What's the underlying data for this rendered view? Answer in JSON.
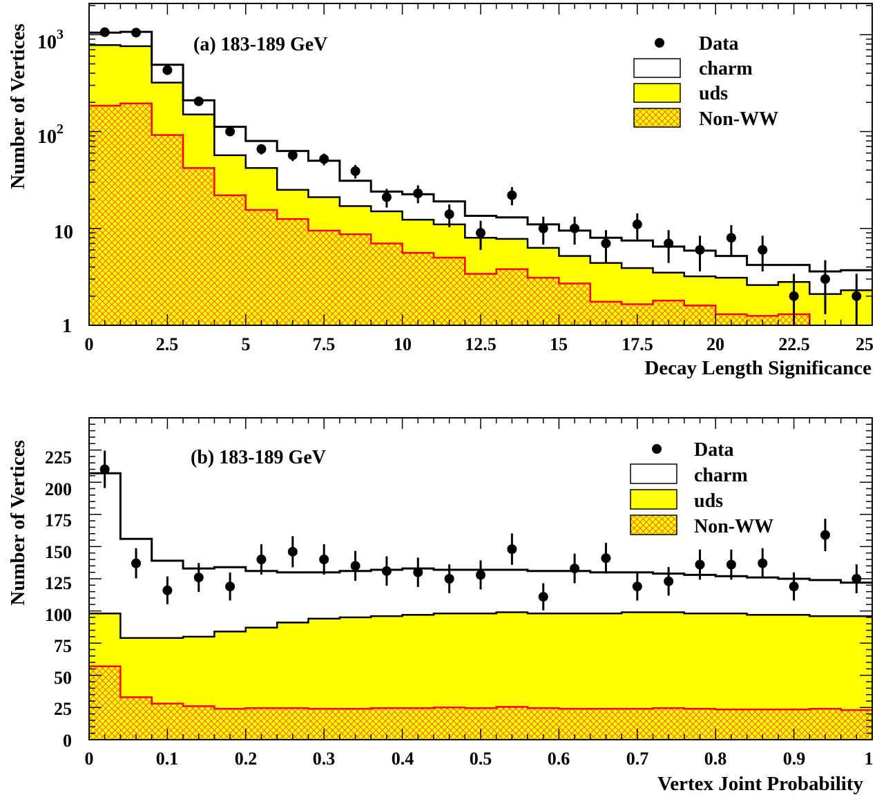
{
  "colors": {
    "uds_fill": "#ffff00",
    "nonww_fill": "#ffff00",
    "nonww_hatch": "#ff4a00",
    "nonww_line": "#ff0000",
    "line": "#000000",
    "background": "#ffffff"
  },
  "chart_data": [
    {
      "type": "histogram",
      "panel_label": "(a) 183-189 GeV",
      "xlabel": "Decay Length Significance",
      "ylabel": "Number of Vertices",
      "log_y": true,
      "xlim": [
        0,
        25
      ],
      "ylim": [
        1,
        2100
      ],
      "x_ticks": [
        0,
        2.5,
        5,
        7.5,
        10,
        12.5,
        15,
        17.5,
        20,
        22.5,
        25
      ],
      "x_tick_labels": [
        "0",
        "2.5",
        "5",
        "7.5",
        "10",
        "12.5",
        "15",
        "17.5",
        "20",
        "22.5",
        "25"
      ],
      "y_tick_labels": [
        {
          "value": 1,
          "base": "1",
          "exp": ""
        },
        {
          "value": 10,
          "base": "10",
          "exp": ""
        },
        {
          "value": 100,
          "base": "10",
          "exp": "2"
        },
        {
          "value": 1000,
          "base": "10",
          "exp": "3"
        }
      ],
      "bin_edges": [
        0,
        1,
        2,
        3,
        4,
        5,
        6,
        7,
        8,
        9,
        10,
        11,
        12,
        13,
        14,
        15,
        16,
        17,
        18,
        19,
        20,
        21,
        22,
        23,
        24,
        25
      ],
      "legend": {
        "position": "top-right",
        "entries": [
          "Data",
          "charm",
          "uds",
          "Non-WW"
        ]
      },
      "series": [
        {
          "name": "charm",
          "kind": "stack-total",
          "values": [
            1050,
            1070,
            490,
            210,
            112,
            80,
            63,
            50,
            31,
            24,
            22.5,
            19,
            13.5,
            13,
            11,
            9.5,
            8,
            7.5,
            6.5,
            5.9,
            5.2,
            4.2,
            4.2,
            3.6,
            3.7
          ]
        },
        {
          "name": "uds",
          "kind": "stack",
          "values": [
            780,
            760,
            320,
            150,
            57,
            42,
            25,
            21,
            17,
            15,
            12.3,
            11,
            8,
            7.8,
            6.3,
            5.2,
            4.4,
            3.9,
            3.5,
            3.2,
            3.1,
            2.6,
            2.8,
            2.1,
            2.3
          ]
        },
        {
          "name": "Non-WW",
          "kind": "stack",
          "values": [
            185,
            195,
            92,
            42,
            22,
            15.5,
            12.5,
            9.5,
            8.7,
            7,
            5.6,
            5,
            3.4,
            3.8,
            3.1,
            2.7,
            1.75,
            1.65,
            1.8,
            1.6,
            1.3,
            1.25,
            1.3,
            0.9,
            0.9
          ]
        },
        {
          "name": "Data",
          "kind": "points",
          "x": [
            0.5,
            1.5,
            2.5,
            3.5,
            4.5,
            5.5,
            6.5,
            7.5,
            8.5,
            9.5,
            10.5,
            11.5,
            12.5,
            13.5,
            14.5,
            15.5,
            16.5,
            17.5,
            18.5,
            19.5,
            20.5,
            21.5,
            22.5,
            23.5,
            24.5
          ],
          "y": [
            1060,
            1050,
            430,
            205,
            100,
            66,
            57,
            52,
            39,
            21,
            23,
            14,
            9,
            22,
            10,
            10,
            7,
            11,
            7,
            6,
            8,
            6,
            2,
            3,
            2
          ],
          "err": [
            33,
            32,
            21,
            14,
            10,
            8,
            7.5,
            7.2,
            6.2,
            4.6,
            4.8,
            3.7,
            3,
            4.7,
            3.2,
            3.2,
            2.6,
            3.3,
            2.6,
            2.4,
            2.8,
            2.4,
            1.4,
            1.7,
            1.4
          ]
        }
      ]
    },
    {
      "type": "histogram",
      "panel_label": "(b) 183-189 GeV",
      "xlabel": "Vertex Joint Probability",
      "ylabel": "Number of Vertices",
      "log_y": false,
      "xlim": [
        0,
        1
      ],
      "ylim": [
        0,
        250
      ],
      "x_ticks": [
        0,
        0.1,
        0.2,
        0.3,
        0.4,
        0.5,
        0.6,
        0.7,
        0.8,
        0.9,
        1
      ],
      "x_tick_labels": [
        "0",
        "0.1",
        "0.2",
        "0.3",
        "0.4",
        "0.5",
        "0.6",
        "0.7",
        "0.8",
        "0.9",
        "1"
      ],
      "y_ticks": [
        0,
        25,
        50,
        75,
        100,
        125,
        150,
        175,
        200,
        225
      ],
      "y_tick_labels": [
        "0",
        "25",
        "50",
        "75",
        "100",
        "125",
        "150",
        "175",
        "200",
        "225"
      ],
      "bin_edges": [
        0,
        0.04,
        0.08,
        0.12,
        0.16,
        0.2,
        0.24,
        0.28,
        0.32,
        0.36,
        0.4,
        0.44,
        0.48,
        0.52,
        0.56,
        0.6,
        0.64,
        0.68,
        0.72,
        0.76,
        0.8,
        0.84,
        0.88,
        0.92,
        0.96,
        1.0
      ],
      "legend": {
        "position": "top-right",
        "entries": [
          "Data",
          "charm",
          "uds",
          "Non-WW"
        ]
      },
      "series": [
        {
          "name": "charm",
          "kind": "stack-total",
          "values": [
            207,
            156,
            139,
            133,
            134,
            131,
            130,
            130,
            131,
            132,
            133,
            132,
            132,
            132,
            131,
            131,
            130,
            130,
            129,
            128,
            127,
            126,
            125,
            124,
            122
          ]
        },
        {
          "name": "uds",
          "kind": "stack",
          "values": [
            98,
            79,
            79,
            80,
            84,
            87,
            91,
            94,
            95,
            96,
            97,
            98,
            98,
            99,
            98,
            98,
            98,
            99,
            99,
            98,
            98,
            97,
            97,
            96,
            96
          ]
        },
        {
          "name": "Non-WW",
          "kind": "stack",
          "values": [
            57,
            33,
            28,
            26,
            24,
            24.5,
            24.5,
            24,
            24,
            24.5,
            24.5,
            25,
            24.5,
            25.5,
            24.5,
            24,
            24,
            24,
            24.5,
            24,
            23.5,
            23.5,
            23.5,
            24,
            23
          ]
        },
        {
          "name": "Data",
          "kind": "points",
          "x": [
            0.02,
            0.06,
            0.1,
            0.14,
            0.18,
            0.22,
            0.26,
            0.3,
            0.34,
            0.38,
            0.42,
            0.46,
            0.5,
            0.54,
            0.58,
            0.62,
            0.66,
            0.7,
            0.74,
            0.78,
            0.82,
            0.86,
            0.9,
            0.94,
            0.98
          ],
          "y": [
            210,
            137,
            116,
            126,
            119,
            140,
            146,
            140,
            135,
            131,
            130,
            125,
            128,
            148,
            111,
            133,
            141,
            119,
            123,
            136,
            136,
            137,
            119,
            159,
            125
          ],
          "err": [
            14.5,
            11.7,
            10.8,
            11.2,
            10.9,
            11.8,
            12.1,
            11.8,
            11.6,
            11.4,
            11.4,
            11.2,
            11.3,
            12.2,
            10.5,
            11.5,
            11.9,
            10.9,
            11.1,
            11.7,
            11.7,
            11.7,
            10.9,
            12.6,
            11.2
          ]
        }
      ]
    }
  ]
}
